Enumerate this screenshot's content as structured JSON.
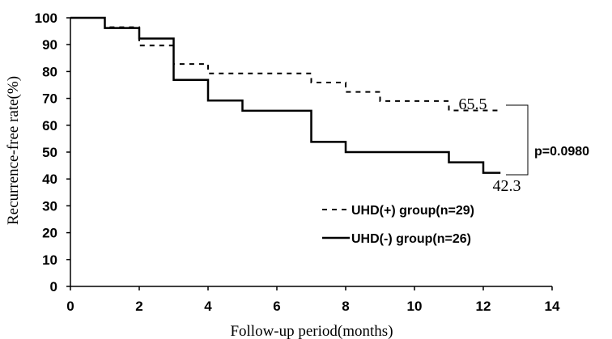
{
  "chart_data": {
    "type": "line",
    "step": true,
    "xlabel": "Follow-up period(months)",
    "ylabel": "Recurrence-free rate(%)",
    "xlim": [
      0,
      14
    ],
    "ylim": [
      0,
      100
    ],
    "xticks": [
      "0",
      "2",
      "4",
      "6",
      "8",
      "10",
      "12",
      "14"
    ],
    "yticks": [
      "0",
      "10",
      "20",
      "30",
      "40",
      "50",
      "60",
      "70",
      "80",
      "90",
      "100"
    ],
    "grid": false,
    "legend_position": "lower-right",
    "series": [
      {
        "name": "UHD(+) group(n=29)",
        "style": "dashed",
        "x": [
          0,
          1,
          2,
          3,
          4,
          7,
          8,
          9,
          11,
          12.5
        ],
        "y": [
          100,
          96.5,
          89.7,
          82.8,
          79.3,
          75.9,
          72.4,
          69,
          65.5,
          65.5
        ]
      },
      {
        "name": "UHD(-) group(n=26)",
        "style": "solid",
        "x": [
          0,
          1,
          2,
          3,
          4,
          5,
          7,
          8,
          11,
          12,
          12.5
        ],
        "y": [
          100,
          96.2,
          92.3,
          76.9,
          69.2,
          65.4,
          53.8,
          50,
          46.2,
          42.3,
          42.3
        ]
      }
    ],
    "annotations": [
      "65.5",
      "42.3",
      "p=0.0980"
    ]
  }
}
